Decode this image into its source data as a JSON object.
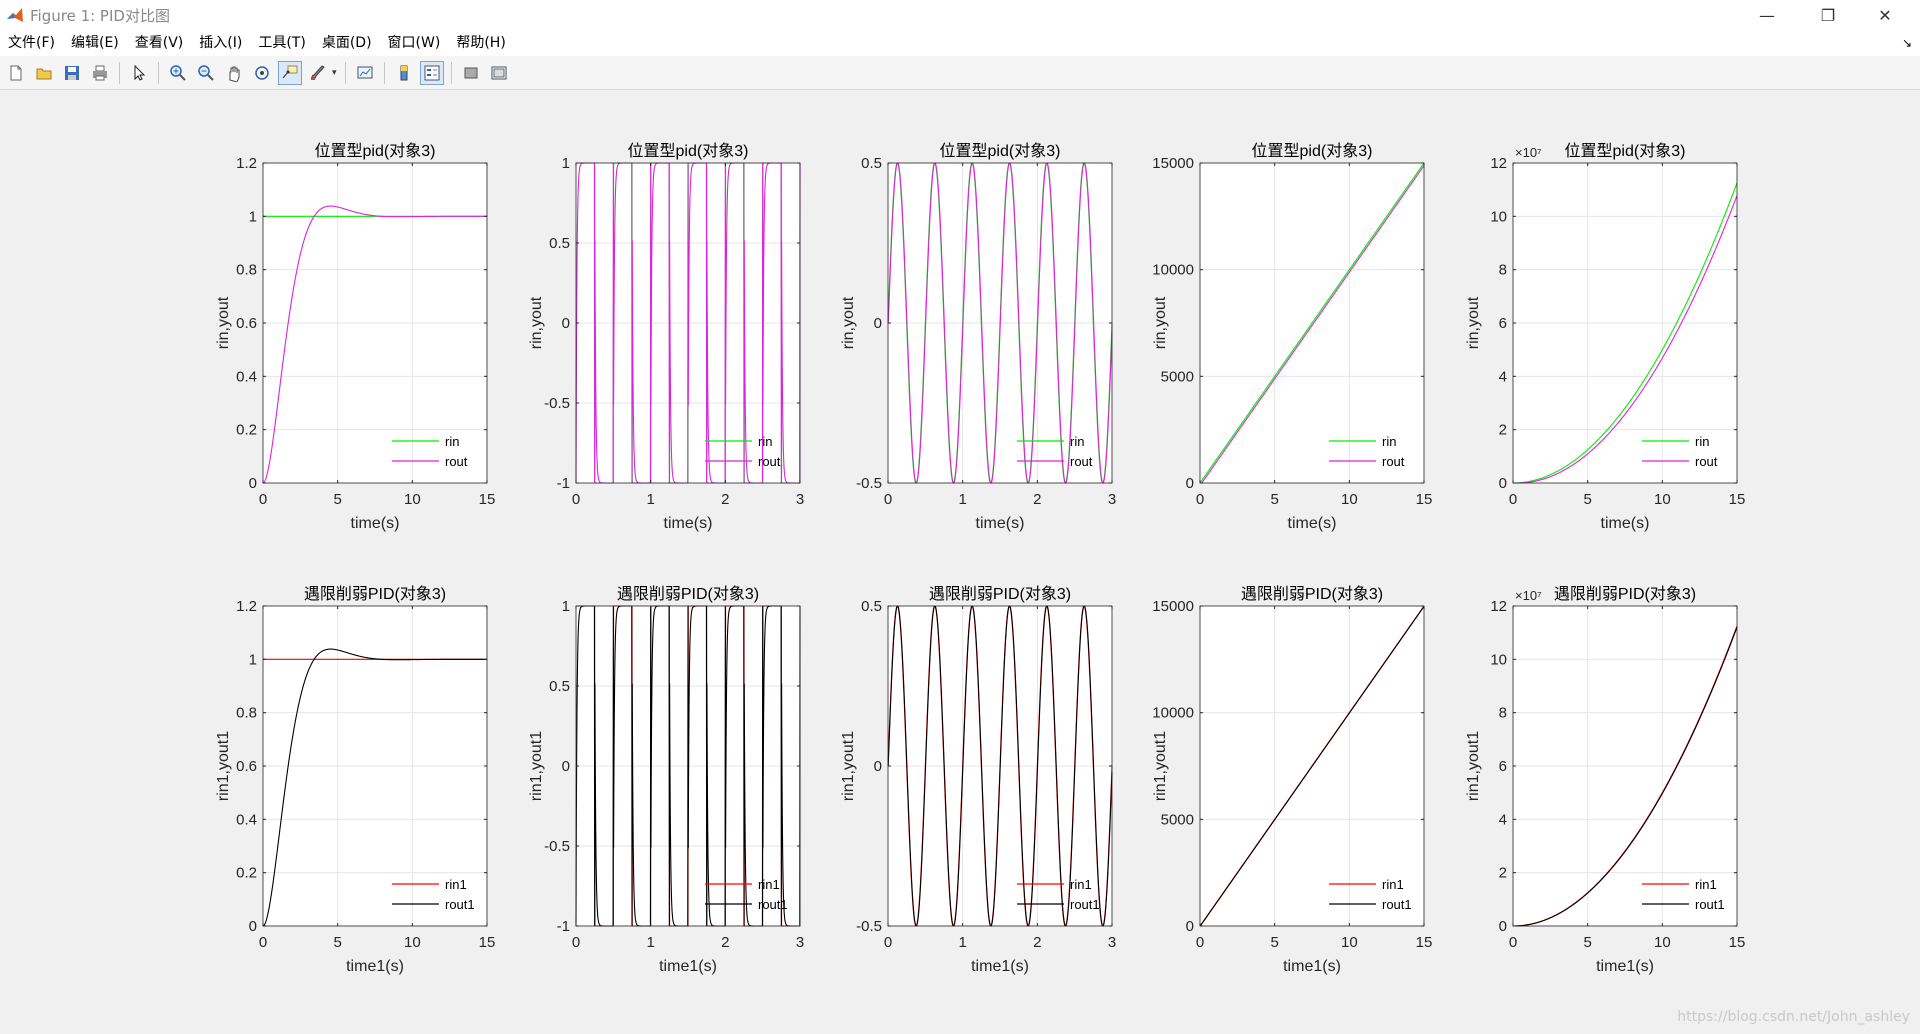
{
  "window": {
    "title": "Figure 1: PID对比图",
    "controls": {
      "minimize": "—",
      "maximize": "❐",
      "close": "✕"
    }
  },
  "menu": {
    "items": [
      "文件(F)",
      "编辑(E)",
      "查看(V)",
      "插入(I)",
      "工具(T)",
      "桌面(D)",
      "窗口(W)",
      "帮助(H)"
    ],
    "expand_glyph": "↘"
  },
  "toolbar": {
    "icons": [
      "new-figure-icon",
      "open-file-icon",
      "save-icon",
      "print-icon",
      "edit-plot-icon",
      "zoom-in-icon",
      "zoom-out-icon",
      "pan-hand-icon",
      "rotate-3d-icon",
      "data-cursor-icon",
      "brush-icon",
      "link-plot-icon",
      "colorbar-icon",
      "legend-icon",
      "hide-plot-tools-icon",
      "show-plot-tools-icon"
    ]
  },
  "colors": {
    "rin": "#00ee00",
    "rout": "#dd22dd",
    "rin1": "#ff0000",
    "rout1": "#000000"
  },
  "watermark": "https://blog.csdn.net/John_ashley",
  "chart_data": [
    {
      "type": "line",
      "title": "位置型pid(对象3)",
      "xlabel": "time(s)",
      "ylabel": "rin,yout",
      "xlim": [
        0,
        15
      ],
      "ylim": [
        0,
        1.2
      ],
      "xticks": [
        "0",
        "5",
        "10",
        "15"
      ],
      "yticks": [
        "0",
        "0.2",
        "0.4",
        "0.6",
        "0.8",
        "1",
        "1.2"
      ],
      "exponent": "",
      "signal": "step",
      "grid": true,
      "legend_position": "bottom-right",
      "series": [
        {
          "name": "rin",
          "kind": "reference"
        },
        {
          "name": "rout",
          "kind": "response"
        }
      ]
    },
    {
      "type": "line",
      "title": "位置型pid(对象3)",
      "xlabel": "time(s)",
      "ylabel": "rin,yout",
      "xlim": [
        0,
        3
      ],
      "ylim": [
        -1,
        1
      ],
      "xticks": [
        "0",
        "1",
        "2",
        "3"
      ],
      "yticks": [
        "-1",
        "-0.5",
        "0",
        "0.5",
        "1"
      ],
      "exponent": "",
      "signal": "square",
      "period": 0.5,
      "grid": true,
      "legend_position": "bottom-right",
      "series": [
        {
          "name": "rin",
          "kind": "reference"
        },
        {
          "name": "rout",
          "kind": "response"
        }
      ]
    },
    {
      "type": "line",
      "title": "位置型pid(对象3)",
      "xlabel": "time(s)",
      "ylabel": "rin,yout",
      "xlim": [
        0,
        3
      ],
      "ylim": [
        -0.5,
        0.5
      ],
      "xticks": [
        "0",
        "1",
        "2",
        "3"
      ],
      "yticks": [
        "-0.5",
        "0",
        "0.5"
      ],
      "exponent": "",
      "signal": "sine",
      "amplitude": 0.5,
      "period": 0.5,
      "grid": true,
      "legend_position": "bottom-right",
      "series": [
        {
          "name": "rin",
          "kind": "reference"
        },
        {
          "name": "rout",
          "kind": "response"
        }
      ]
    },
    {
      "type": "line",
      "title": "位置型pid(对象3)",
      "xlabel": "time(s)",
      "ylabel": "rin,yout",
      "xlim": [
        0,
        15
      ],
      "ylim": [
        0,
        15000
      ],
      "xticks": [
        "0",
        "5",
        "10",
        "15"
      ],
      "yticks": [
        "0",
        "5000",
        "10000",
        "15000"
      ],
      "exponent": "",
      "signal": "ramp",
      "slope": 1000,
      "grid": true,
      "legend_position": "bottom-right",
      "series": [
        {
          "name": "rin",
          "kind": "reference"
        },
        {
          "name": "rout",
          "kind": "response"
        }
      ]
    },
    {
      "type": "line",
      "title": "位置型pid(对象3)",
      "xlabel": "time(s)",
      "ylabel": "rin,yout",
      "xlim": [
        0,
        15
      ],
      "ylim": [
        0,
        12
      ],
      "xticks": [
        "0",
        "5",
        "10",
        "15"
      ],
      "yticks": [
        "0",
        "2",
        "4",
        "6",
        "8",
        "10",
        "12"
      ],
      "exponent": "×10⁷",
      "signal": "parabola",
      "coef": 0.05,
      "grid": true,
      "legend_position": "bottom-right",
      "series": [
        {
          "name": "rin",
          "kind": "reference"
        },
        {
          "name": "rout",
          "kind": "response"
        }
      ]
    },
    {
      "type": "line",
      "title": "遇限削弱PID(对象3)",
      "xlabel": "time1(s)",
      "ylabel": "rin1,yout1",
      "xlim": [
        0,
        15
      ],
      "ylim": [
        0,
        1.2
      ],
      "xticks": [
        "0",
        "5",
        "10",
        "15"
      ],
      "yticks": [
        "0",
        "0.2",
        "0.4",
        "0.6",
        "0.8",
        "1",
        "1.2"
      ],
      "exponent": "",
      "signal": "step",
      "grid": true,
      "legend_position": "bottom-right",
      "series": [
        {
          "name": "rin1",
          "kind": "reference"
        },
        {
          "name": "rout1",
          "kind": "response"
        }
      ]
    },
    {
      "type": "line",
      "title": "遇限削弱PID(对象3)",
      "xlabel": "time1(s)",
      "ylabel": "rin1,yout1",
      "xlim": [
        0,
        3
      ],
      "ylim": [
        -1,
        1
      ],
      "xticks": [
        "0",
        "1",
        "2",
        "3"
      ],
      "yticks": [
        "-1",
        "-0.5",
        "0",
        "0.5",
        "1"
      ],
      "exponent": "",
      "signal": "square",
      "period": 0.5,
      "grid": true,
      "legend_position": "bottom-right",
      "series": [
        {
          "name": "rin1",
          "kind": "reference"
        },
        {
          "name": "rout1",
          "kind": "response"
        }
      ]
    },
    {
      "type": "line",
      "title": "遇限削弱PID(对象3)",
      "xlabel": "time1(s)",
      "ylabel": "rin1,yout1",
      "xlim": [
        0,
        3
      ],
      "ylim": [
        -0.5,
        0.5
      ],
      "xticks": [
        "0",
        "1",
        "2",
        "3"
      ],
      "yticks": [
        "-0.5",
        "0",
        "0.5"
      ],
      "exponent": "",
      "signal": "sine",
      "amplitude": 0.5,
      "period": 0.5,
      "grid": true,
      "legend_position": "bottom-right",
      "series": [
        {
          "name": "rin1",
          "kind": "reference"
        },
        {
          "name": "rout1",
          "kind": "response"
        }
      ]
    },
    {
      "type": "line",
      "title": "遇限削弱PID(对象3)",
      "xlabel": "time1(s)",
      "ylabel": "rin1,yout1",
      "xlim": [
        0,
        15
      ],
      "ylim": [
        0,
        15000
      ],
      "xticks": [
        "0",
        "5",
        "10",
        "15"
      ],
      "yticks": [
        "0",
        "5000",
        "10000",
        "15000"
      ],
      "exponent": "",
      "signal": "ramp",
      "slope": 1000,
      "grid": true,
      "legend_position": "bottom-right",
      "series": [
        {
          "name": "rin1",
          "kind": "reference"
        },
        {
          "name": "rout1",
          "kind": "response"
        }
      ]
    },
    {
      "type": "line",
      "title": "遇限削弱PID(对象3)",
      "xlabel": "time1(s)",
      "ylabel": "rin1,yout1",
      "xlim": [
        0,
        15
      ],
      "ylim": [
        0,
        12
      ],
      "xticks": [
        "0",
        "5",
        "10",
        "15"
      ],
      "yticks": [
        "0",
        "2",
        "4",
        "6",
        "8",
        "10",
        "12"
      ],
      "exponent": "×10⁷",
      "signal": "parabola",
      "coef": 0.05,
      "grid": true,
      "legend_position": "bottom-right",
      "series": [
        {
          "name": "rin1",
          "kind": "reference"
        },
        {
          "name": "rout1",
          "kind": "response"
        }
      ]
    }
  ]
}
